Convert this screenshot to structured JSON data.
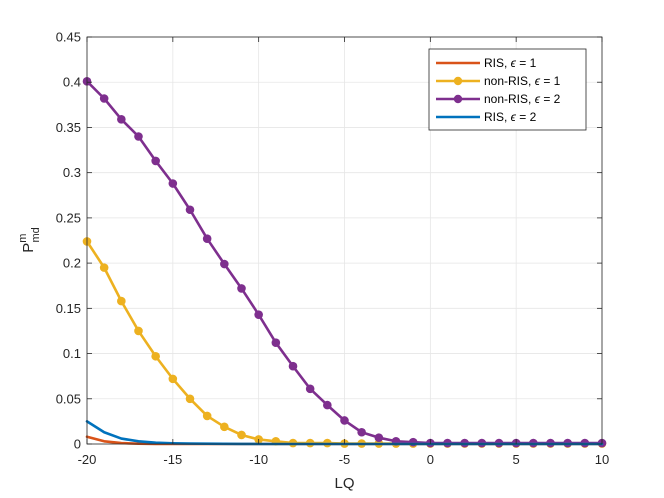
{
  "chart_data": {
    "type": "line",
    "xlabel": "LQ",
    "ylabel_main": "P",
    "ylabel_sup": "m",
    "ylabel_sub": "md",
    "xlim": [
      -20,
      10
    ],
    "ylim": [
      0,
      0.45
    ],
    "grid": true,
    "legend_position": "top-right",
    "x_ticks": [
      -20,
      -15,
      -10,
      -5,
      0,
      5,
      10
    ],
    "x_tick_labels": [
      "-20",
      "-15",
      "-10",
      "-5",
      "0",
      "5",
      "10"
    ],
    "y_ticks": [
      0,
      0.05,
      0.1,
      0.15,
      0.2,
      0.25,
      0.3,
      0.35,
      0.4,
      0.45
    ],
    "y_tick_labels": [
      "0",
      "0.05",
      "0.1",
      "0.15",
      "0.2",
      "0.25",
      "0.3",
      "0.35",
      "0.4",
      "0.45"
    ],
    "x": [
      -20,
      -19,
      -18,
      -17,
      -16,
      -15,
      -14,
      -13,
      -12,
      -11,
      -10,
      -9,
      -8,
      -7,
      -6,
      -5,
      -4,
      -3,
      -2,
      -1,
      0,
      1,
      2,
      3,
      4,
      5,
      6,
      7,
      8,
      9,
      10
    ],
    "series": [
      {
        "name_prefix": "RIS, ",
        "name_symbol": "ϵ",
        "name_suffix": " = 1",
        "color": "#D95319",
        "markers": false,
        "values": [
          0.008,
          0.003,
          0.001,
          0.0003,
          0.0001,
          0,
          0,
          0,
          0,
          0,
          0,
          0,
          0,
          0,
          0,
          0,
          0,
          0,
          0,
          0,
          0,
          0,
          0,
          0,
          0,
          0,
          0,
          0,
          0,
          0,
          0
        ]
      },
      {
        "name_prefix": "non-RIS, ",
        "name_symbol": "ϵ",
        "name_suffix": " = 1",
        "color": "#EDB120",
        "markers": true,
        "values": [
          0.224,
          0.195,
          0.158,
          0.125,
          0.097,
          0.072,
          0.05,
          0.031,
          0.019,
          0.01,
          0.005,
          0.003,
          0.001,
          0.001,
          0.001,
          0.0005,
          0.0005,
          0.0005,
          0.0005,
          0.0005,
          0.0005,
          0.0005,
          0.0005,
          0.0005,
          0.0005,
          0.0005,
          0.0005,
          0.0005,
          0.0005,
          0.0005,
          0.0005
        ]
      },
      {
        "name_prefix": "non-RIS, ",
        "name_symbol": "ϵ",
        "name_suffix": " = 2",
        "color": "#7E2F8E",
        "markers": true,
        "values": [
          0.401,
          0.382,
          0.359,
          0.34,
          0.313,
          0.288,
          0.259,
          0.227,
          0.199,
          0.172,
          0.143,
          0.112,
          0.086,
          0.061,
          0.043,
          0.026,
          0.013,
          0.007,
          0.003,
          0.002,
          0.001,
          0.001,
          0.001,
          0.001,
          0.001,
          0.001,
          0.001,
          0.001,
          0.001,
          0.001,
          0.001
        ]
      },
      {
        "name_prefix": "RIS, ",
        "name_symbol": "ϵ",
        "name_suffix": " = 2",
        "color": "#0072BD",
        "markers": false,
        "values": [
          0.025,
          0.013,
          0.006,
          0.003,
          0.0015,
          0.0008,
          0.0005,
          0.0003,
          0.0002,
          0.0001,
          0,
          0,
          0,
          0,
          0,
          0,
          0,
          0,
          0,
          0,
          0,
          0,
          0,
          0,
          0,
          0,
          0,
          0,
          0,
          0,
          0
        ]
      }
    ]
  }
}
